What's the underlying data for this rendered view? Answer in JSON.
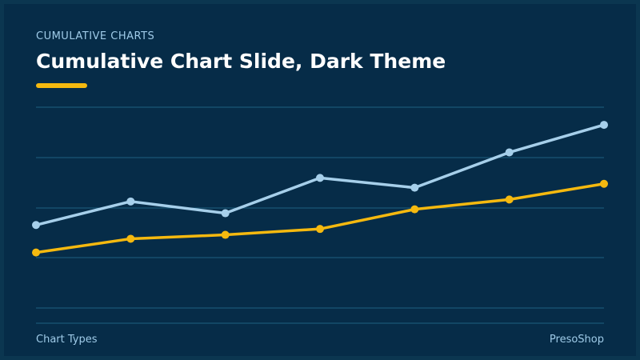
{
  "header": {
    "kicker": "CUMULATIVE CHARTS",
    "title": "Cumulative Chart Slide, Dark Theme"
  },
  "footer": {
    "left": "Chart Types",
    "right": "PresoShop"
  },
  "colors": {
    "background": "#062c48",
    "accent": "#f5b90f",
    "series_blue": "#a6cfea",
    "gridline": "#1f5f80",
    "text_muted": "#9fcbe8"
  },
  "chart_data": {
    "type": "line",
    "x": [
      1,
      2,
      3,
      4,
      5,
      6,
      7
    ],
    "series": [
      {
        "values": [
          50,
          62,
          56,
          74,
          69,
          87,
          101
        ],
        "color": "#a6cfea"
      },
      {
        "values": [
          36,
          43,
          45,
          48,
          58,
          63,
          71
        ],
        "color": "#f5b90f"
      }
    ],
    "ylim": [
      0,
      110
    ],
    "grid": true,
    "legend": "none"
  }
}
